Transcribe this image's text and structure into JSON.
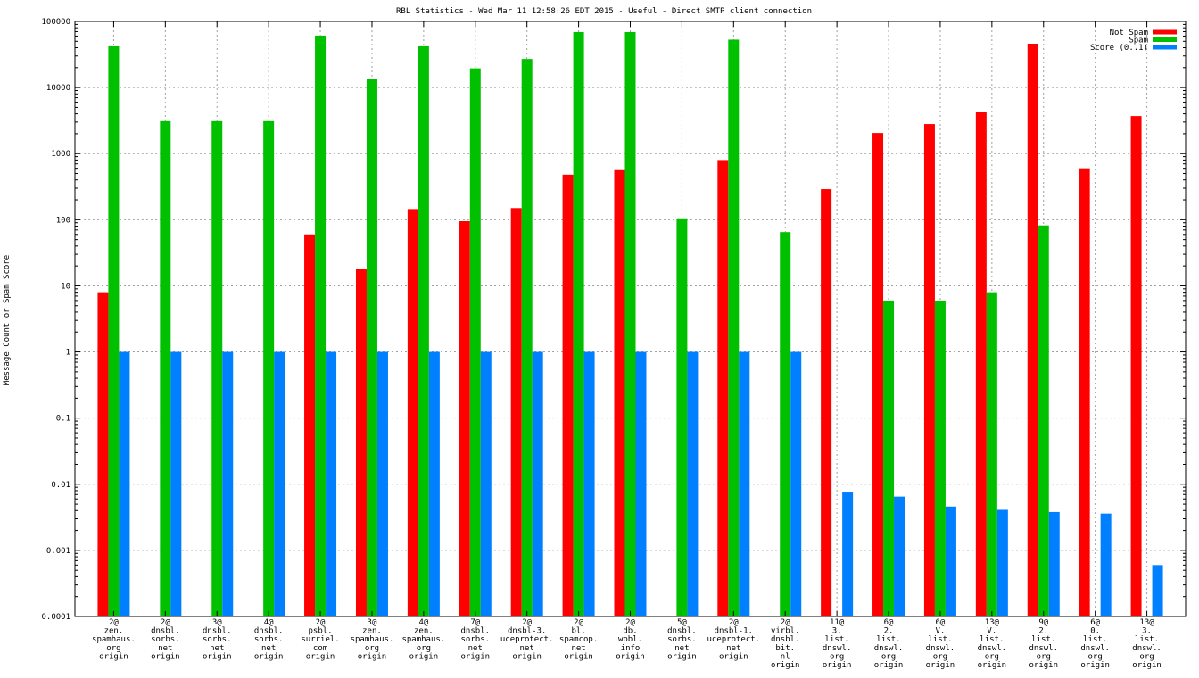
{
  "chart_data": {
    "type": "bar",
    "title": "RBL Statistics - Wed Mar 11 12:58:26 EDT 2015 - Useful - Direct SMTP client connection",
    "xlabel": "",
    "ylabel": "Message Count or Spam Score",
    "y_scale": "log",
    "ylim": [
      0.0001,
      100000
    ],
    "y_tick_labels": [
      "0.0001",
      "0.001",
      "0.01",
      "0.1",
      "1",
      "10",
      "100",
      "1000",
      "10000",
      "100000"
    ],
    "grid": true,
    "legend_position": "top-right",
    "categories": [
      [
        "2@",
        "zen.",
        "spamhaus.",
        "org",
        "origin"
      ],
      [
        "2@",
        "dnsbl.",
        "sorbs.",
        "net",
        "origin"
      ],
      [
        "3@",
        "dnsbl.",
        "sorbs.",
        "net",
        "origin"
      ],
      [
        "4@",
        "dnsbl.",
        "sorbs.",
        "net",
        "origin"
      ],
      [
        "2@",
        "psbl.",
        "surriel.",
        "com",
        "origin"
      ],
      [
        "3@",
        "zen.",
        "spamhaus.",
        "org",
        "origin"
      ],
      [
        "4@",
        "zen.",
        "spamhaus.",
        "org",
        "origin"
      ],
      [
        "7@",
        "dnsbl.",
        "sorbs.",
        "net",
        "origin"
      ],
      [
        "2@",
        "dnsbl-3.",
        "uceprotect.",
        "net",
        "origin"
      ],
      [
        "2@",
        "bl.",
        "spamcop.",
        "net",
        "origin"
      ],
      [
        "2@",
        "db.",
        "wpbl.",
        "info",
        "origin"
      ],
      [
        "5@",
        "dnsbl.",
        "sorbs.",
        "net",
        "origin"
      ],
      [
        "2@",
        "dnsbl-1.",
        "uceprotect.",
        "net",
        "origin"
      ],
      [
        "2@",
        "virbl.",
        "dnsbl.",
        "bit.",
        "nl",
        "origin"
      ],
      [
        "11@",
        "3.",
        "list.",
        "dnswl.",
        "org",
        "origin"
      ],
      [
        "6@",
        "2.",
        "list.",
        "dnswl.",
        "org",
        "origin"
      ],
      [
        "6@",
        "V.",
        "list.",
        "dnswl.",
        "org",
        "origin"
      ],
      [
        "13@",
        "V.",
        "list.",
        "dnswl.",
        "org",
        "origin"
      ],
      [
        "9@",
        "2.",
        "list.",
        "dnswl.",
        "org",
        "origin"
      ],
      [
        "6@",
        "0.",
        "list.",
        "dnswl.",
        "org",
        "origin"
      ],
      [
        "13@",
        "3.",
        "list.",
        "dnswl.",
        "org",
        "origin"
      ]
    ],
    "series": [
      {
        "name": "Not Spam",
        "color": "#ff0000",
        "values": [
          8,
          null,
          null,
          null,
          60,
          18,
          145,
          95,
          150,
          480,
          580,
          null,
          800,
          null,
          290,
          2050,
          2800,
          4300,
          46000,
          600,
          3700
        ]
      },
      {
        "name": "Spam",
        "color": "#00c000",
        "values": [
          42000,
          3100,
          3100,
          3100,
          61000,
          13500,
          42000,
          19500,
          27000,
          69000,
          69000,
          105,
          53000,
          65,
          null,
          6,
          6,
          8,
          82,
          null,
          null
        ]
      },
      {
        "name": "Score (0..1)",
        "color": "#0080ff",
        "values": [
          1,
          1,
          1,
          1,
          1,
          1,
          1,
          1,
          1,
          1,
          1,
          1,
          1,
          1,
          0.0075,
          0.0065,
          0.0046,
          0.0041,
          0.0038,
          0.0036,
          0.0006
        ]
      }
    ]
  }
}
